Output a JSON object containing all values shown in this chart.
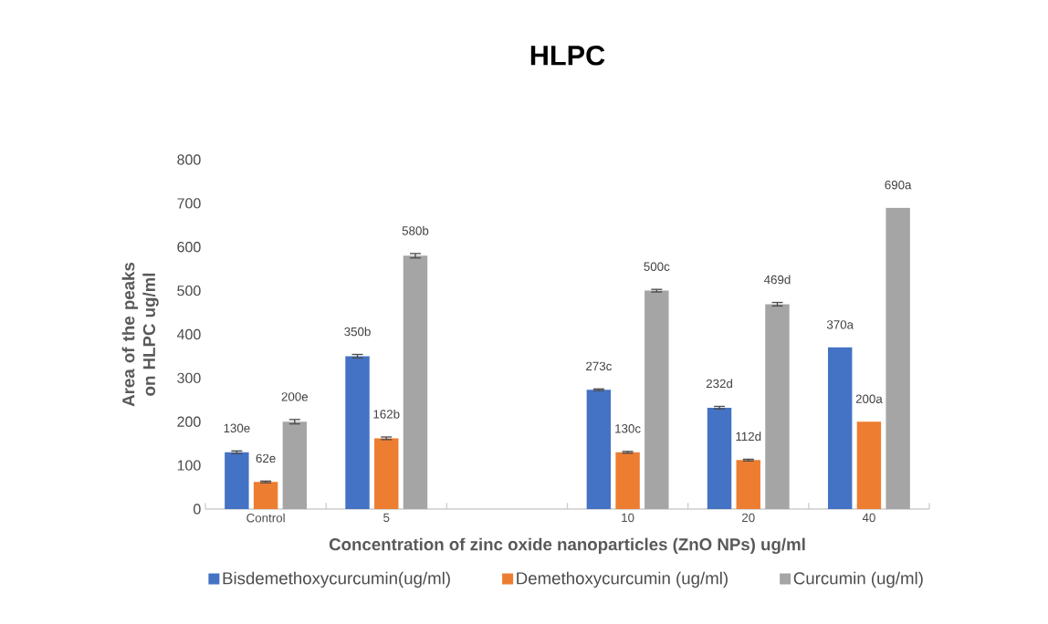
{
  "chart_data": {
    "type": "bar",
    "title": "HLPC",
    "xlabel": "Concentration of  zinc oxide nanoparticles (ZnO NPs) ug/ml",
    "ylabel": "Area of the peaks on HLPC ug/ml",
    "categories": [
      "Control",
      "5",
      null,
      "10",
      "20",
      "40"
    ],
    "series": [
      {
        "name": "Bisdemethoxycurcumin(ug/ml)",
        "color": "#4472c4",
        "values": [
          130,
          350,
          null,
          273,
          232,
          370
        ],
        "errors": [
          3,
          4,
          null,
          2,
          3,
          null
        ],
        "value_labels": [
          "130e",
          "350b",
          null,
          "273c",
          "232d",
          "370a"
        ]
      },
      {
        "name": "Demethoxycurcumin (ug/ml)",
        "color": "#ed7d31",
        "values": [
          62,
          162,
          null,
          130,
          112,
          200
        ],
        "errors": [
          2,
          3,
          null,
          2,
          2,
          null
        ],
        "value_labels": [
          "62e",
          "162b",
          null,
          "130c",
          "112d",
          "200a"
        ]
      },
      {
        "name": "Curcumin (ug/ml)",
        "color": "#a5a5a5",
        "values": [
          200,
          580,
          null,
          500,
          469,
          690
        ],
        "errors": [
          5,
          5,
          null,
          3,
          4,
          null
        ],
        "value_labels": [
          "200e",
          "580b",
          null,
          "500c",
          "469d",
          "690a"
        ]
      }
    ],
    "ylim": [
      0,
      800
    ],
    "yticks": [
      0,
      100,
      200,
      300,
      400,
      500,
      600,
      700,
      800
    ],
    "legend": "bottom",
    "grid": false
  }
}
